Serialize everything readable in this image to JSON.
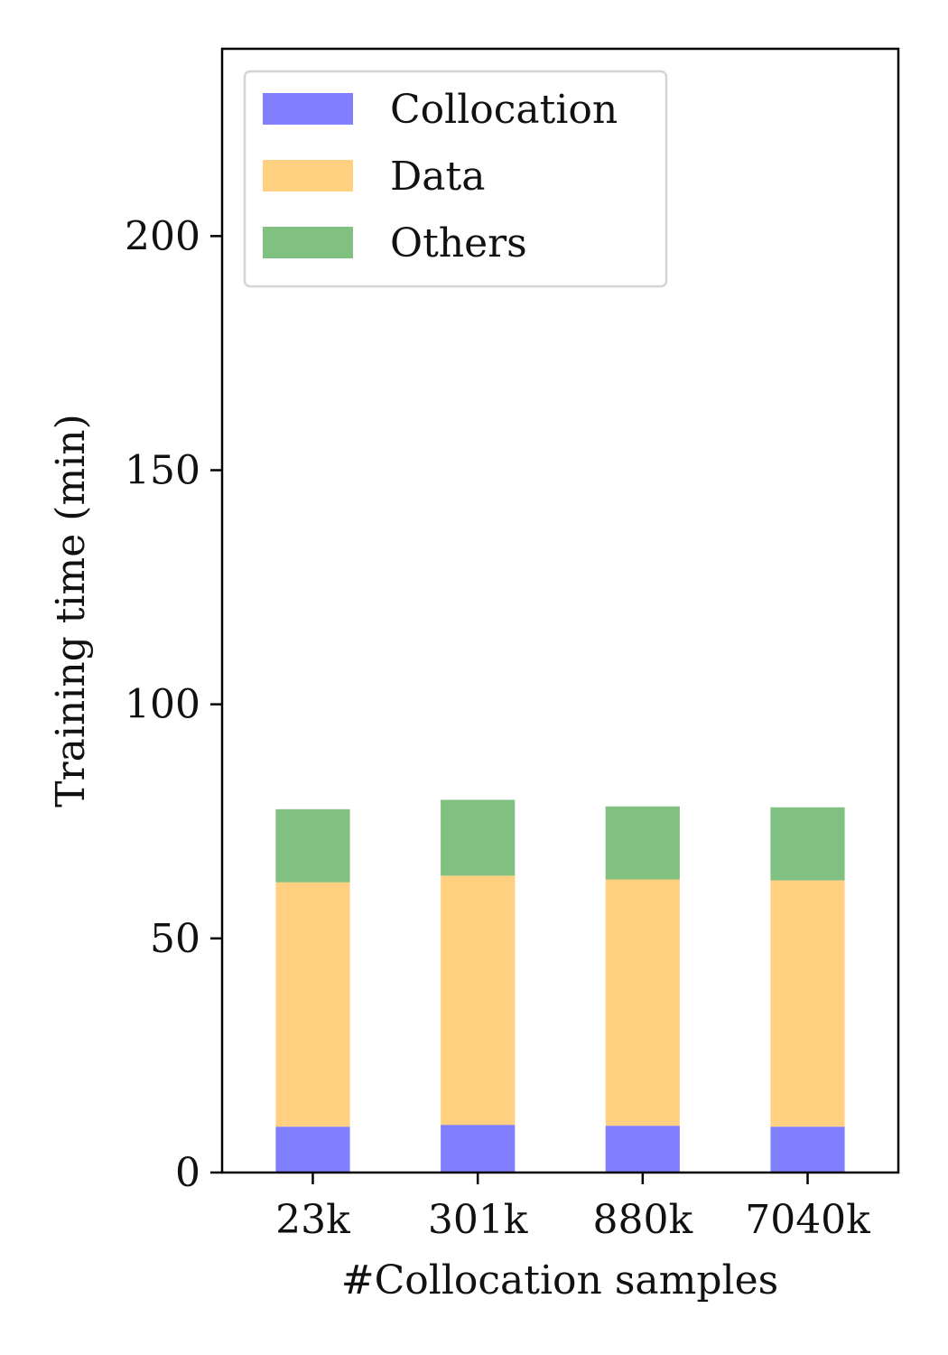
{
  "chart_data": {
    "type": "bar",
    "stacked": true,
    "categories": [
      "23k",
      "301k",
      "880k",
      "7040k"
    ],
    "series": [
      {
        "name": "Collocation",
        "color": "#8080ff",
        "values": [
          9.8,
          10.2,
          10.0,
          9.8
        ]
      },
      {
        "name": "Data",
        "color": "#ffd080",
        "values": [
          52.2,
          53.2,
          52.6,
          52.6
        ]
      },
      {
        "name": "Others",
        "color": "#80c080",
        "values": [
          15.6,
          16.2,
          15.6,
          15.6
        ]
      }
    ],
    "xlabel": "#Collocation samples",
    "ylabel": "Training time (min)",
    "ylim": [
      0,
      240
    ],
    "yticks": [
      0,
      50,
      100,
      150,
      200
    ],
    "grid": false,
    "legend_position": "top-left"
  }
}
